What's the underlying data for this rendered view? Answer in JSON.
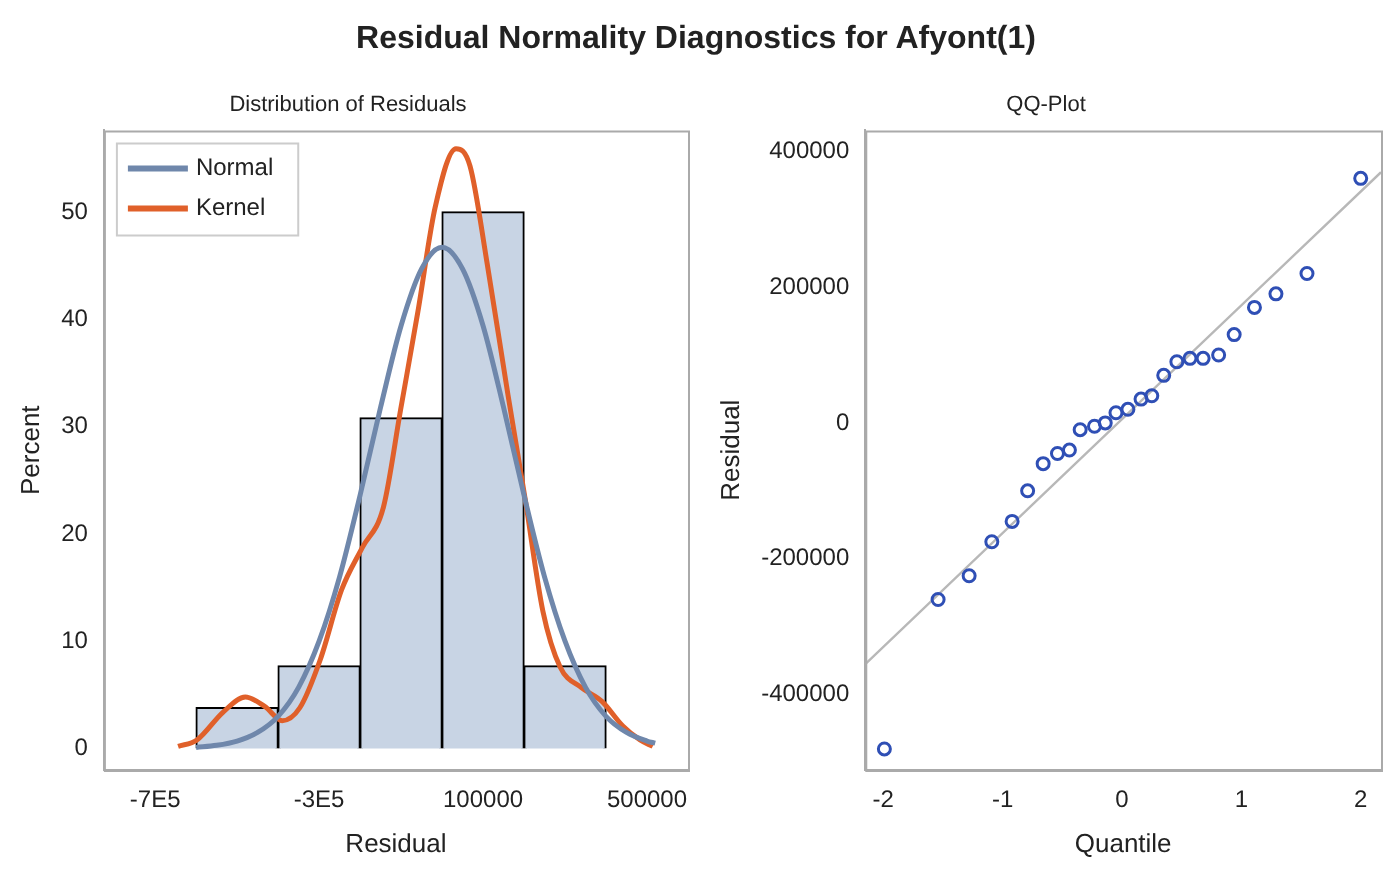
{
  "chart_data": [
    {
      "type": "histogram",
      "title": "Residual Normality Diagnostics for Afyont(1)",
      "subtitle": "Distribution of Residuals",
      "xlabel": "Residual",
      "ylabel": "Percent",
      "bins": [
        -600000,
        -400000,
        -200000,
        0,
        200000,
        400000
      ],
      "values": [
        3.8,
        7.7,
        30.8,
        50,
        7.7
      ],
      "color": "#c8d4e4",
      "series": [
        {
          "name": "Normal",
          "type": "line",
          "color": "#6f87ab",
          "x": [
            -600000,
            -550000,
            -500000,
            -450000,
            -400000,
            -350000,
            -300000,
            -250000,
            -200000,
            -150000,
            -100000,
            -50000,
            0,
            50000,
            100000,
            150000,
            200000,
            250000,
            300000,
            350000,
            400000,
            450000,
            500000,
            520000
          ],
          "values": [
            0.1,
            0.3,
            0.7,
            1.5,
            3.0,
            5.7,
            10.0,
            16.0,
            23.6,
            31.8,
            39.4,
            44.7,
            46.7,
            44.7,
            39.4,
            31.8,
            23.6,
            16.0,
            10.0,
            5.7,
            3.0,
            1.5,
            0.7,
            0.5
          ]
        },
        {
          "name": "Kernel",
          "type": "line",
          "color": "#e0602a",
          "x": [
            -644000,
            -598000,
            -534000,
            -480000,
            -432000,
            -390000,
            -347000,
            -297000,
            -245000,
            -195000,
            -143000,
            -101000,
            -59000,
            -17000,
            34000,
            68000,
            110000,
            161000,
            203000,
            246000,
            288000,
            339000,
            390000,
            441000,
            483000,
            514000
          ],
          "values": [
            0.2,
            0.8,
            3.4,
            4.8,
            3.9,
            2.6,
            3.8,
            8.3,
            14.8,
            18.7,
            22.5,
            31.6,
            40.7,
            50.4,
            55.9,
            54.3,
            45.2,
            32.9,
            23.2,
            12.8,
            7.6,
            5.7,
            4.4,
            2.1,
            0.8,
            0.2
          ]
        }
      ],
      "xlim": [
        -825000,
        600000
      ],
      "xticks": [
        {
          "value": -700000,
          "label": "-7E5"
        },
        {
          "value": -300000,
          "label": "-3E5"
        },
        100000,
        500000
      ],
      "ylim": [
        -2,
        57.6
      ],
      "yticks": [
        0,
        10,
        20,
        30,
        40,
        50
      ],
      "grid": false,
      "legend": "top left"
    },
    {
      "type": "scatter",
      "title": "QQ-Plot",
      "xlabel": "Quantile",
      "ylabel": "Residual",
      "marker": "circle",
      "series": [
        {
          "color": "#2f4fb5",
          "x": [
            -1.99,
            -1.54,
            -1.28,
            -1.09,
            -0.92,
            -0.79,
            -0.66,
            -0.54,
            -0.44,
            -0.35,
            -0.23,
            -0.14,
            -0.05,
            0.05,
            0.16,
            0.25,
            0.35,
            0.46,
            0.57,
            0.68,
            0.81,
            0.94,
            1.11,
            1.29,
            1.55,
            2.0
          ],
          "values": [
            -480000,
            -260000,
            -225000,
            -175000,
            -145000,
            -100000,
            -60000,
            -45000,
            -40000,
            -10000,
            -5000,
            0,
            15000,
            20000,
            35000,
            40000,
            70000,
            90000,
            95000,
            95000,
            100000,
            130000,
            170000,
            190000,
            220000,
            360000
          ]
        },
        {
          "type": "line",
          "marker": "none",
          "color": "#b8b8b8",
          "x": [
            -2.15,
            2.17
          ],
          "values": [
            -355000,
            369000
          ]
        }
      ],
      "xlim": [
        -2.15,
        2.17
      ],
      "xticks": [
        -2,
        -1,
        0,
        1,
        2
      ],
      "ylim": [
        -511000,
        430600
      ],
      "yticks": [
        -400000,
        -200000,
        0,
        200000,
        400000
      ],
      "grid": false,
      "legend": false
    }
  ]
}
